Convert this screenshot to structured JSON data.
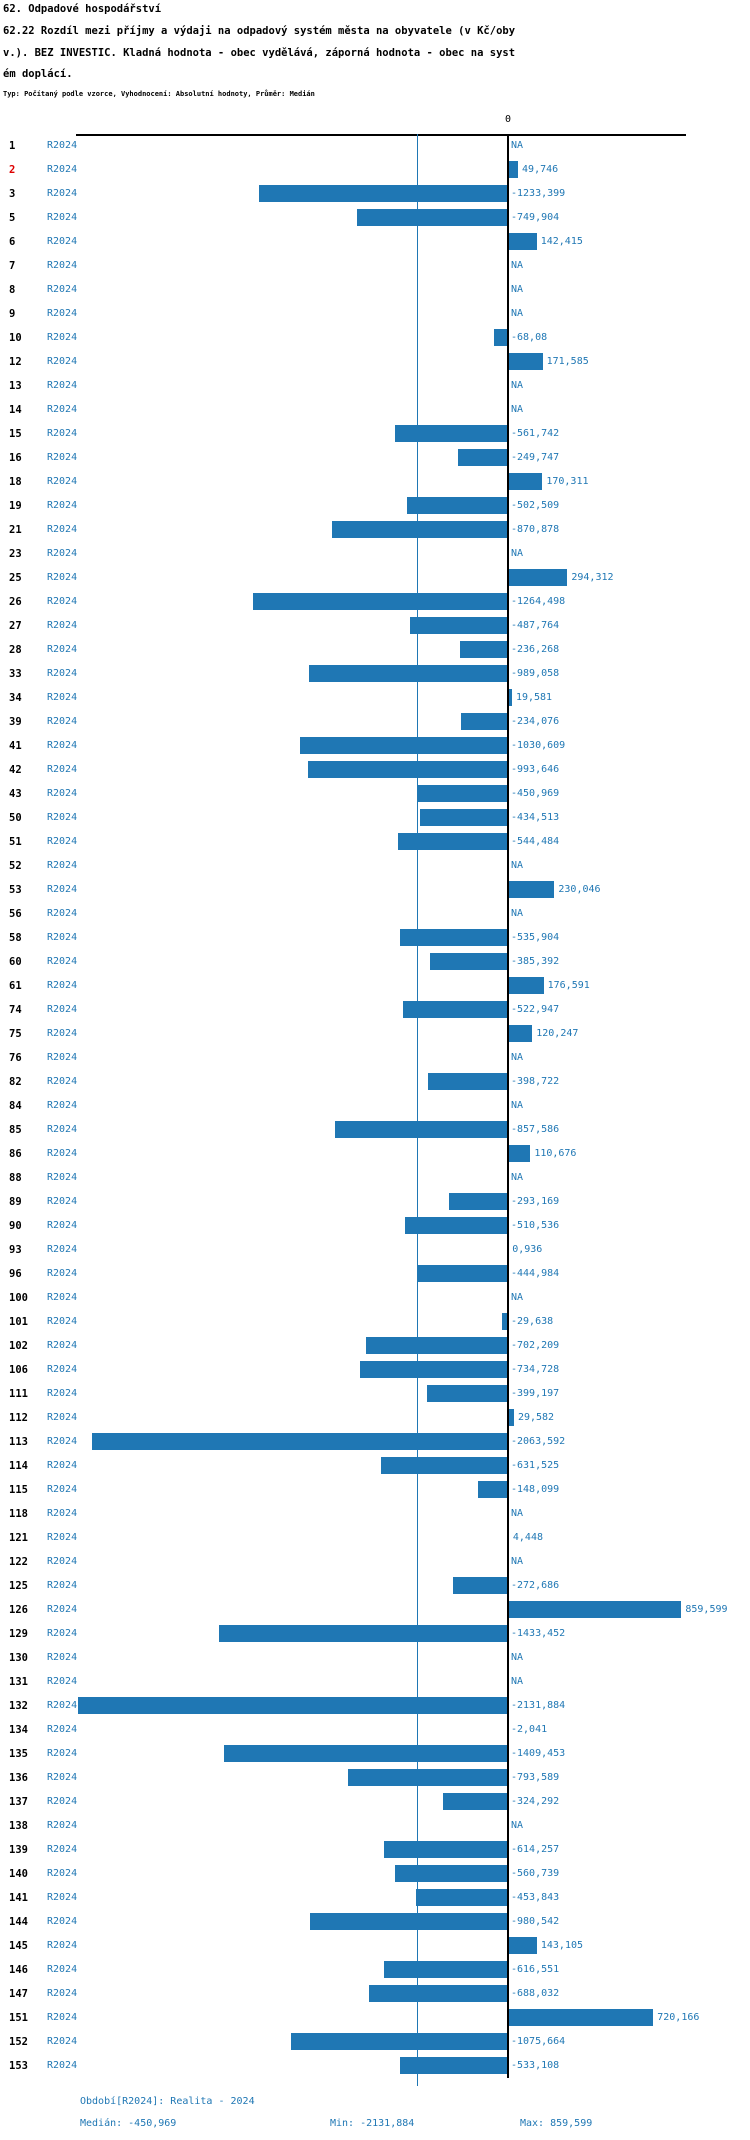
{
  "header": {
    "title": "62. Odpadové hospodářství",
    "line2": "62.22 Rozdíl mezi příjmy a výdaji na odpadový systém města na obyvatele (v Kč/oby",
    "line3": "v.). BEZ INVESTIC. Kladná hodnota - obec vydělává, záporná hodnota - obec na syst",
    "line4": "ém doplácí.",
    "meta": "Typ: Počítaný podle vzorce, Vyhodnocení: Absolutní hodnoty, Průměr: Medián"
  },
  "chart_data": {
    "type": "bar",
    "orientation": "horizontal",
    "title": "62. Odpadové hospodářství",
    "metric": "62.22 Rozdíl mezi příjmy a výdaji na odpadový systém města na obyvatele (v Kč/obyv.). BEZ INVESTIC. Kladná hodnota - obec vydělává, záporná hodnota - obec na systém doplácí.",
    "series_label": "R2024",
    "zero_label": "0",
    "na_label": "NA",
    "xlim": [
      -2142,
      883
    ],
    "median": -450.969,
    "min": -2131.884,
    "max": 859.599,
    "colors": {
      "bar": "#1f77b4",
      "value_text": "#1f77b4",
      "highlight_row_number": "#dd0000",
      "axis": "#000000"
    },
    "rows": [
      {
        "n": "1",
        "value": null,
        "label": "NA"
      },
      {
        "n": "2",
        "value": 49.746,
        "label": "49,746",
        "red": true
      },
      {
        "n": "3",
        "value": -1233.399,
        "label": "-1233,399"
      },
      {
        "n": "5",
        "value": -749.904,
        "label": "-749,904"
      },
      {
        "n": "6",
        "value": 142.415,
        "label": "142,415"
      },
      {
        "n": "7",
        "value": null,
        "label": "NA"
      },
      {
        "n": "8",
        "value": null,
        "label": "NA"
      },
      {
        "n": "9",
        "value": null,
        "label": "NA"
      },
      {
        "n": "10",
        "value": -68.08,
        "label": "-68,08"
      },
      {
        "n": "12",
        "value": 171.585,
        "label": "171,585"
      },
      {
        "n": "13",
        "value": null,
        "label": "NA"
      },
      {
        "n": "14",
        "value": null,
        "label": "NA"
      },
      {
        "n": "15",
        "value": -561.742,
        "label": "-561,742"
      },
      {
        "n": "16",
        "value": -249.747,
        "label": "-249,747"
      },
      {
        "n": "18",
        "value": 170.311,
        "label": "170,311"
      },
      {
        "n": "19",
        "value": -502.509,
        "label": "-502,509"
      },
      {
        "n": "21",
        "value": -870.878,
        "label": "-870,878"
      },
      {
        "n": "23",
        "value": null,
        "label": "NA"
      },
      {
        "n": "25",
        "value": 294.312,
        "label": "294,312"
      },
      {
        "n": "26",
        "value": -1264.498,
        "label": "-1264,498"
      },
      {
        "n": "27",
        "value": -487.764,
        "label": "-487,764"
      },
      {
        "n": "28",
        "value": -236.268,
        "label": "-236,268"
      },
      {
        "n": "33",
        "value": -989.058,
        "label": "-989,058"
      },
      {
        "n": "34",
        "value": 19.581,
        "label": "19,581"
      },
      {
        "n": "39",
        "value": -234.076,
        "label": "-234,076"
      },
      {
        "n": "41",
        "value": -1030.609,
        "label": "-1030,609"
      },
      {
        "n": "42",
        "value": -993.646,
        "label": "-993,646"
      },
      {
        "n": "43",
        "value": -450.969,
        "label": "-450,969"
      },
      {
        "n": "50",
        "value": -434.513,
        "label": "-434,513"
      },
      {
        "n": "51",
        "value": -544.484,
        "label": "-544,484"
      },
      {
        "n": "52",
        "value": null,
        "label": "NA"
      },
      {
        "n": "53",
        "value": 230.046,
        "label": "230,046"
      },
      {
        "n": "56",
        "value": null,
        "label": "NA"
      },
      {
        "n": "58",
        "value": -535.904,
        "label": "-535,904"
      },
      {
        "n": "60",
        "value": -385.392,
        "label": "-385,392"
      },
      {
        "n": "61",
        "value": 176.591,
        "label": "176,591"
      },
      {
        "n": "74",
        "value": -522.947,
        "label": "-522,947"
      },
      {
        "n": "75",
        "value": 120.247,
        "label": "120,247"
      },
      {
        "n": "76",
        "value": null,
        "label": "NA"
      },
      {
        "n": "82",
        "value": -398.722,
        "label": "-398,722"
      },
      {
        "n": "84",
        "value": null,
        "label": "NA"
      },
      {
        "n": "85",
        "value": -857.586,
        "label": "-857,586"
      },
      {
        "n": "86",
        "value": 110.676,
        "label": "110,676"
      },
      {
        "n": "88",
        "value": null,
        "label": "NA"
      },
      {
        "n": "89",
        "value": -293.169,
        "label": "-293,169"
      },
      {
        "n": "90",
        "value": -510.536,
        "label": "-510,536"
      },
      {
        "n": "93",
        "value": 0.936,
        "label": "0,936"
      },
      {
        "n": "96",
        "value": -444.984,
        "label": "-444,984"
      },
      {
        "n": "100",
        "value": null,
        "label": "NA"
      },
      {
        "n": "101",
        "value": -29.638,
        "label": "-29,638"
      },
      {
        "n": "102",
        "value": -702.209,
        "label": "-702,209"
      },
      {
        "n": "106",
        "value": -734.728,
        "label": "-734,728"
      },
      {
        "n": "111",
        "value": -399.197,
        "label": "-399,197"
      },
      {
        "n": "112",
        "value": 29.582,
        "label": "29,582"
      },
      {
        "n": "113",
        "value": -2063.592,
        "label": "-2063,592"
      },
      {
        "n": "114",
        "value": -631.525,
        "label": "-631,525"
      },
      {
        "n": "115",
        "value": -148.099,
        "label": "-148,099"
      },
      {
        "n": "118",
        "value": null,
        "label": "NA"
      },
      {
        "n": "121",
        "value": 4.448,
        "label": "4,448"
      },
      {
        "n": "122",
        "value": null,
        "label": "NA"
      },
      {
        "n": "125",
        "value": -272.686,
        "label": "-272,686"
      },
      {
        "n": "126",
        "value": 859.599,
        "label": "859,599"
      },
      {
        "n": "129",
        "value": -1433.452,
        "label": "-1433,452"
      },
      {
        "n": "130",
        "value": null,
        "label": "NA"
      },
      {
        "n": "131",
        "value": null,
        "label": "NA"
      },
      {
        "n": "132",
        "value": -2131.884,
        "label": "-2131,884"
      },
      {
        "n": "134",
        "value": -2.041,
        "label": "-2,041"
      },
      {
        "n": "135",
        "value": -1409.453,
        "label": "-1409,453"
      },
      {
        "n": "136",
        "value": -793.589,
        "label": "-793,589"
      },
      {
        "n": "137",
        "value": -324.292,
        "label": "-324,292"
      },
      {
        "n": "138",
        "value": null,
        "label": "NA"
      },
      {
        "n": "139",
        "value": -614.257,
        "label": "-614,257"
      },
      {
        "n": "140",
        "value": -560.739,
        "label": "-560,739"
      },
      {
        "n": "141",
        "value": -453.843,
        "label": "-453,843"
      },
      {
        "n": "144",
        "value": -980.542,
        "label": "-980,542"
      },
      {
        "n": "145",
        "value": 143.105,
        "label": "143,105"
      },
      {
        "n": "146",
        "value": -616.551,
        "label": "-616,551"
      },
      {
        "n": "147",
        "value": -688.032,
        "label": "-688,032"
      },
      {
        "n": "151",
        "value": 720.166,
        "label": "720,166"
      },
      {
        "n": "152",
        "value": -1075.664,
        "label": "-1075,664"
      },
      {
        "n": "153",
        "value": -533.108,
        "label": "-533,108"
      }
    ]
  },
  "footer": {
    "period": "Období[R2024]: Realita - 2024",
    "median": "Medián: -450,969",
    "min": "Min: -2131,884",
    "max": "Max: 859,599"
  }
}
